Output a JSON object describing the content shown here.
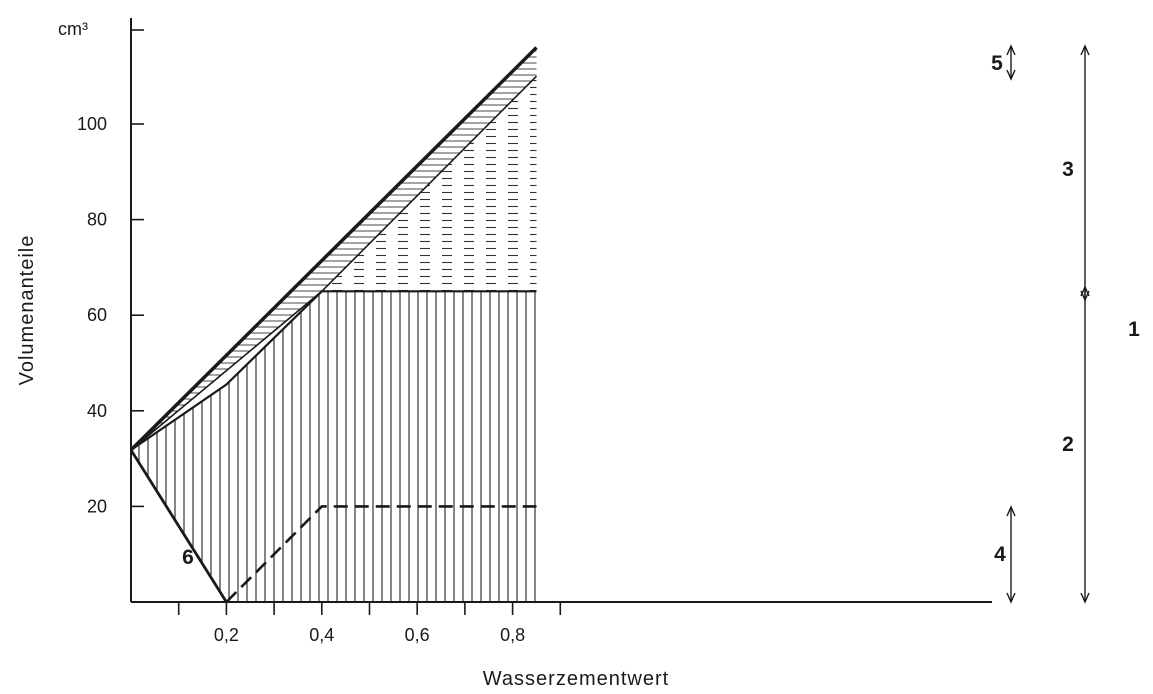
{
  "chart_data": {
    "type": "area",
    "xlabel": "Wasserzementwert",
    "ylabel": "Volumenanteile",
    "y_unit": "cm³",
    "xlim": [
      0,
      0.9
    ],
    "ylim": [
      0,
      120
    ],
    "x_ticks": [
      {
        "value": 0.2,
        "label": "0,2"
      },
      {
        "value": 0.4,
        "label": "0,4"
      },
      {
        "value": 0.6,
        "label": "0,6"
      },
      {
        "value": 0.8,
        "label": "0,8"
      }
    ],
    "y_ticks": [
      {
        "value": 20,
        "label": "20"
      },
      {
        "value": 40,
        "label": "40"
      },
      {
        "value": 60,
        "label": "60"
      },
      {
        "value": 80,
        "label": "80"
      },
      {
        "value": 100,
        "label": "100"
      }
    ],
    "lines": {
      "total_volume": [
        [
          0,
          31.8
        ],
        [
          0.85,
          116
        ]
      ],
      "upper_band_boundary": [
        [
          0,
          31.8
        ],
        [
          0.4,
          65
        ],
        [
          0.85,
          110
        ]
      ],
      "hydrated_top": [
        [
          0,
          31.8
        ],
        [
          0.2,
          45.5
        ],
        [
          0.4,
          65
        ],
        [
          0.85,
          65
        ]
      ],
      "cement_boundary": [
        [
          0,
          31.8
        ],
        [
          0.2,
          0
        ]
      ],
      "lower_dashed": [
        [
          0.2,
          0
        ],
        [
          0.4,
          20
        ],
        [
          0.85,
          20
        ]
      ]
    },
    "region_labels": [
      {
        "id": "5",
        "text": "5"
      },
      {
        "id": "3",
        "text": "3"
      },
      {
        "id": "1",
        "text": "1"
      },
      {
        "id": "2",
        "text": "2"
      },
      {
        "id": "4",
        "text": "4"
      },
      {
        "id": "6",
        "text": "6"
      }
    ]
  }
}
